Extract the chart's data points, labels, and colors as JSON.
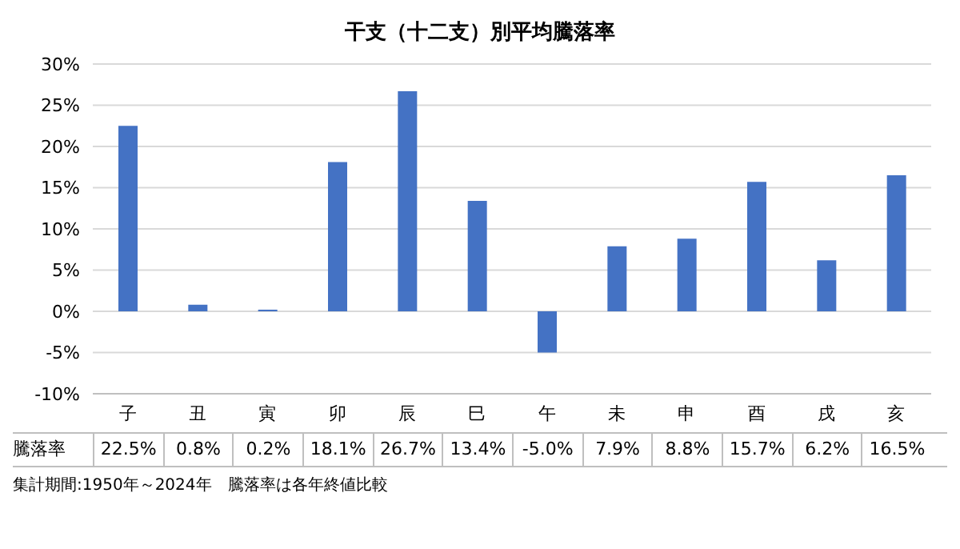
{
  "chart_data": {
    "type": "bar",
    "title": "干支（十二支）別平均騰落率",
    "categories": [
      "子",
      "丑",
      "寅",
      "卯",
      "辰",
      "巳",
      "午",
      "未",
      "申",
      "酉",
      "戌",
      "亥"
    ],
    "series": [
      {
        "name": "騰落率",
        "color": "#4472c4",
        "values": [
          22.5,
          0.8,
          0.2,
          18.1,
          26.7,
          13.4,
          -5.0,
          7.9,
          8.8,
          15.7,
          6.2,
          16.5
        ],
        "value_labels": [
          "22.5%",
          "0.8%",
          "0.2%",
          "18.1%",
          "26.7%",
          "13.4%",
          "-5.0%",
          "7.9%",
          "8.8%",
          "15.7%",
          "6.2%",
          "16.5%"
        ]
      }
    ],
    "ylim": [
      -10,
      30
    ],
    "yticks": [
      {
        "value": -10,
        "label": "-10%"
      },
      {
        "value": -5,
        "label": "-5%"
      },
      {
        "value": 0,
        "label": "0%"
      },
      {
        "value": 5,
        "label": "5%"
      },
      {
        "value": 10,
        "label": "10%"
      },
      {
        "value": 15,
        "label": "15%"
      },
      {
        "value": 20,
        "label": "20%"
      },
      {
        "value": 25,
        "label": "25%"
      },
      {
        "value": 30,
        "label": "30%"
      }
    ],
    "grid": "y",
    "annotations": [
      "集計期間:1950年～2024年　騰落率は各年終値比較"
    ]
  }
}
